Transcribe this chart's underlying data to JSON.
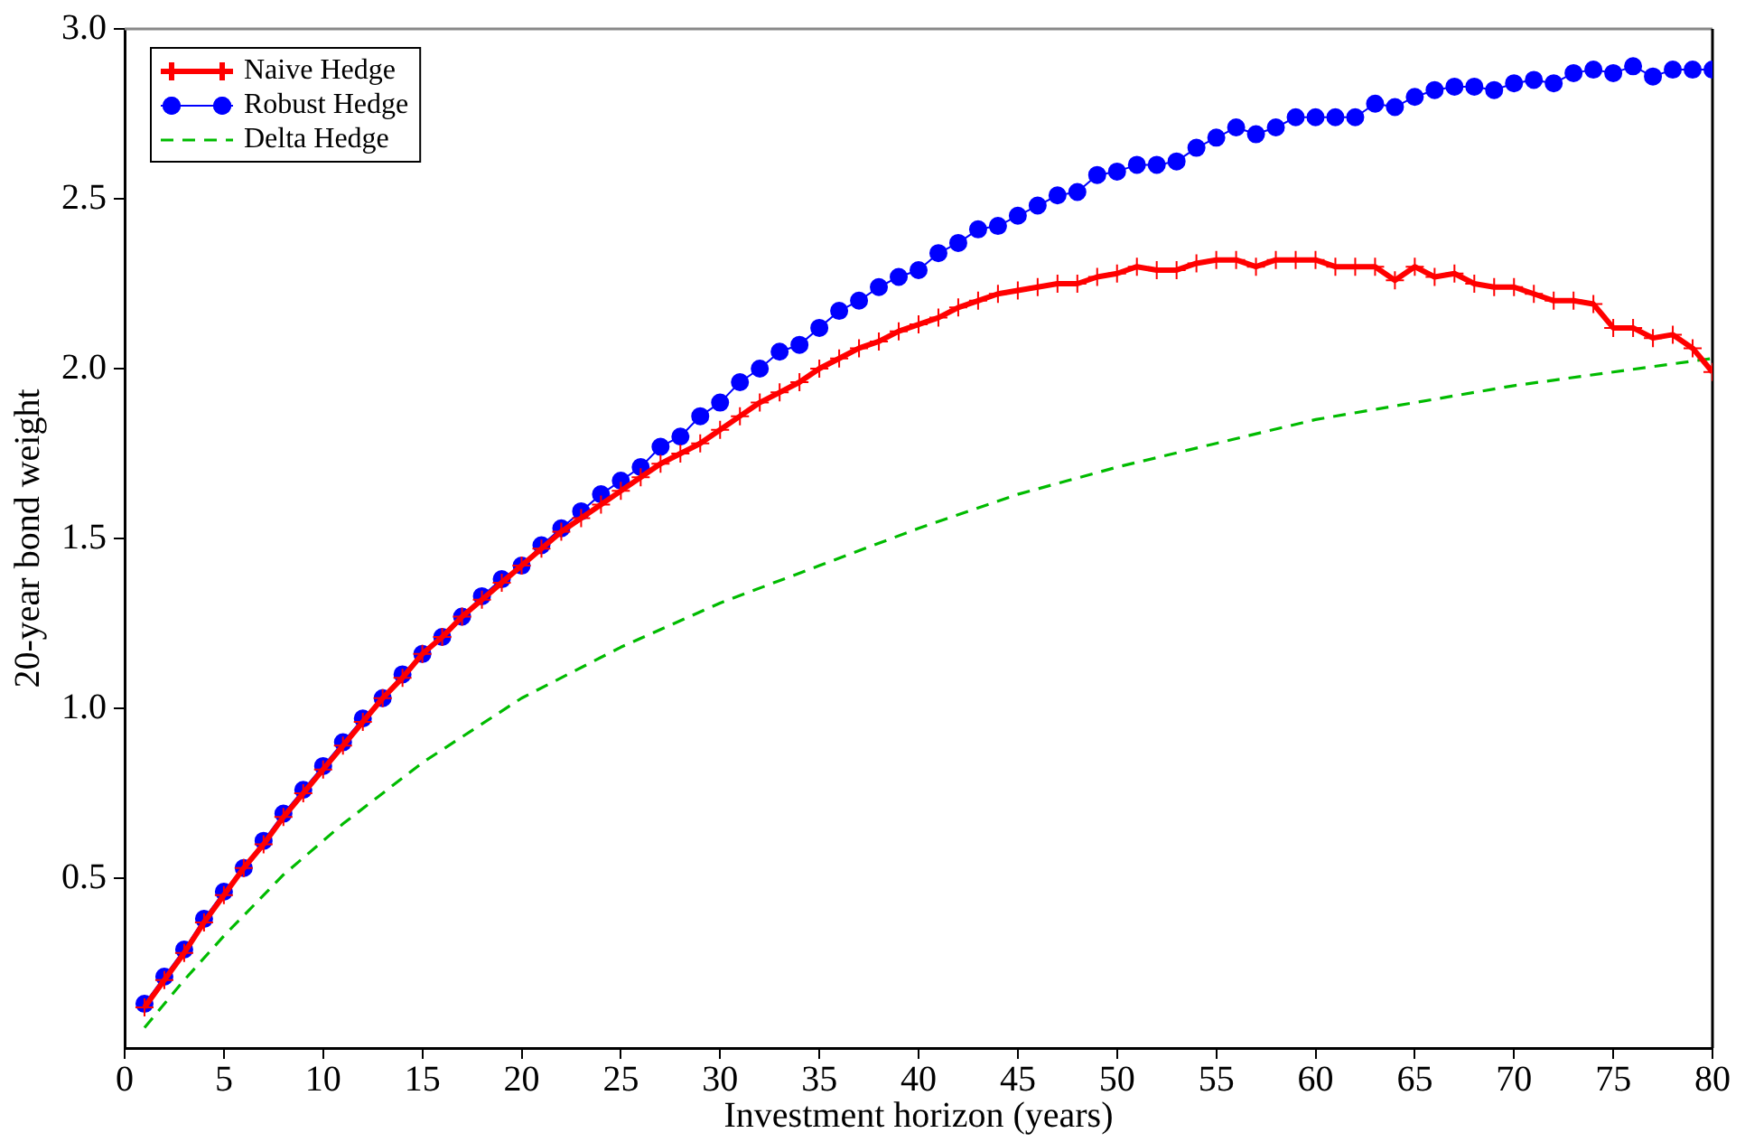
{
  "chart_data": {
    "type": "line",
    "xlabel": "Investment horizon (years)",
    "ylabel": "20-year bond weight",
    "xlim": [
      0,
      80
    ],
    "xticks": [
      0,
      5,
      10,
      15,
      20,
      25,
      30,
      35,
      40,
      45,
      50,
      55,
      60,
      65,
      70,
      75,
      80
    ],
    "ylim": [
      0,
      3
    ],
    "yticks": [
      {
        "value": 0.5,
        "label": "0.5"
      },
      {
        "value": 1,
        "label": "1.0"
      },
      {
        "value": 1.5,
        "label": "1.5"
      },
      {
        "value": 2,
        "label": "2.0"
      },
      {
        "value": 2.5,
        "label": "2.5"
      },
      {
        "value": 3,
        "label": "3.0"
      }
    ],
    "grid": false,
    "legend": "top left",
    "x": [
      1,
      2,
      3,
      4,
      5,
      6,
      7,
      8,
      9,
      10,
      11,
      12,
      13,
      14,
      15,
      16,
      17,
      18,
      19,
      20,
      21,
      22,
      23,
      24,
      25,
      26,
      27,
      28,
      29,
      30,
      31,
      32,
      33,
      34,
      35,
      36,
      37,
      38,
      39,
      40,
      41,
      42,
      43,
      44,
      45,
      46,
      47,
      48,
      49,
      50,
      51,
      52,
      53,
      54,
      55,
      56,
      57,
      58,
      59,
      60,
      61,
      62,
      63,
      64,
      65,
      66,
      67,
      68,
      69,
      70,
      71,
      72,
      73,
      74,
      75,
      76,
      77,
      78,
      79,
      80
    ],
    "series": [
      {
        "name": "Naive Hedge",
        "color": "#ff0000",
        "marker": "cross",
        "line_style": "solid",
        "values": [
          0.12,
          0.2,
          0.28,
          0.37,
          0.45,
          0.53,
          0.6,
          0.68,
          0.75,
          0.82,
          0.89,
          0.96,
          1.03,
          1.09,
          1.16,
          1.21,
          1.27,
          1.32,
          1.37,
          1.42,
          1.47,
          1.52,
          1.56,
          1.6,
          1.64,
          1.68,
          1.72,
          1.75,
          1.78,
          1.82,
          1.86,
          1.9,
          1.93,
          1.96,
          2,
          2.03,
          2.06,
          2.08,
          2.11,
          2.13,
          2.15,
          2.18,
          2.2,
          2.22,
          2.23,
          2.24,
          2.25,
          2.25,
          2.27,
          2.28,
          2.3,
          2.29,
          2.29,
          2.31,
          2.32,
          2.32,
          2.3,
          2.32,
          2.32,
          2.32,
          2.3,
          2.3,
          2.3,
          2.26,
          2.3,
          2.27,
          2.28,
          2.25,
          2.24,
          2.24,
          2.22,
          2.2,
          2.2,
          2.19,
          2.12,
          2.12,
          2.09,
          2.1,
          2.06,
          1.99
        ]
      },
      {
        "name": "Robust Hedge",
        "color": "#0000ff",
        "marker": "circle",
        "line_style": "solid",
        "values": [
          0.13,
          0.21,
          0.29,
          0.38,
          0.46,
          0.53,
          0.61,
          0.69,
          0.76,
          0.83,
          0.9,
          0.97,
          1.03,
          1.1,
          1.16,
          1.21,
          1.27,
          1.33,
          1.38,
          1.42,
          1.48,
          1.53,
          1.58,
          1.63,
          1.67,
          1.71,
          1.77,
          1.8,
          1.86,
          1.9,
          1.96,
          2,
          2.05,
          2.07,
          2.12,
          2.17,
          2.2,
          2.24,
          2.27,
          2.29,
          2.34,
          2.37,
          2.41,
          2.42,
          2.45,
          2.48,
          2.51,
          2.52,
          2.57,
          2.58,
          2.6,
          2.6,
          2.61,
          2.65,
          2.68,
          2.71,
          2.69,
          2.71,
          2.74,
          2.74,
          2.74,
          2.74,
          2.78,
          2.77,
          2.8,
          2.82,
          2.83,
          2.83,
          2.82,
          2.84,
          2.85,
          2.84,
          2.87,
          2.88,
          2.87,
          2.89,
          2.86,
          2.88,
          2.88,
          2.88
        ]
      },
      {
        "name": "Delta Hedge",
        "color": "#00bb00",
        "marker": "none",
        "line_style": "dashed",
        "x": [
          1,
          3,
          5,
          8,
          11,
          15,
          20,
          25,
          30,
          35,
          40,
          45,
          50,
          55,
          60,
          65,
          70,
          75,
          80
        ],
        "values": [
          0.06,
          0.2,
          0.33,
          0.51,
          0.66,
          0.84,
          1.03,
          1.18,
          1.31,
          1.42,
          1.53,
          1.63,
          1.71,
          1.78,
          1.85,
          1.9,
          1.95,
          1.99,
          2.03
        ]
      }
    ]
  }
}
